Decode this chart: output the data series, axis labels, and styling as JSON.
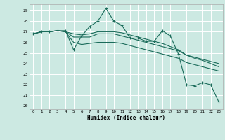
{
  "xlabel": "Humidex (Indice chaleur)",
  "x_ticks": [
    0,
    1,
    2,
    3,
    4,
    5,
    6,
    7,
    8,
    9,
    10,
    11,
    12,
    13,
    14,
    15,
    16,
    17,
    18,
    19,
    20,
    21,
    22,
    23
  ],
  "ylim": [
    19.7,
    29.6
  ],
  "xlim": [
    -0.5,
    23.5
  ],
  "yticks": [
    20,
    21,
    22,
    23,
    24,
    25,
    26,
    27,
    28,
    29
  ],
  "background_color": "#cce9e2",
  "grid_color": "#ffffff",
  "line_color": "#1a6b5a",
  "series": [
    [
      26.8,
      27.0,
      27.0,
      27.1,
      27.1,
      25.3,
      26.6,
      27.5,
      28.0,
      29.2,
      28.0,
      27.6,
      26.4,
      26.4,
      26.1,
      26.1,
      27.1,
      26.6,
      24.9,
      22.0,
      21.9,
      22.2,
      22.0,
      20.4
    ],
    [
      26.8,
      27.0,
      27.0,
      27.1,
      27.0,
      26.8,
      26.7,
      26.8,
      27.0,
      27.0,
      27.0,
      26.9,
      26.7,
      26.5,
      26.3,
      26.1,
      25.9,
      25.6,
      25.3,
      24.8,
      24.5,
      24.3,
      24.0,
      23.7
    ],
    [
      26.8,
      27.0,
      27.0,
      27.1,
      27.0,
      26.5,
      26.5,
      26.5,
      26.8,
      26.8,
      26.8,
      26.6,
      26.4,
      26.2,
      26.0,
      25.8,
      25.6,
      25.4,
      25.2,
      24.8,
      24.6,
      24.4,
      24.2,
      24.0
    ],
    [
      26.8,
      27.0,
      27.0,
      27.1,
      27.0,
      26.0,
      25.8,
      25.9,
      26.0,
      26.0,
      26.0,
      25.9,
      25.7,
      25.5,
      25.3,
      25.1,
      24.9,
      24.7,
      24.5,
      24.1,
      23.9,
      23.7,
      23.5,
      23.3
    ]
  ]
}
